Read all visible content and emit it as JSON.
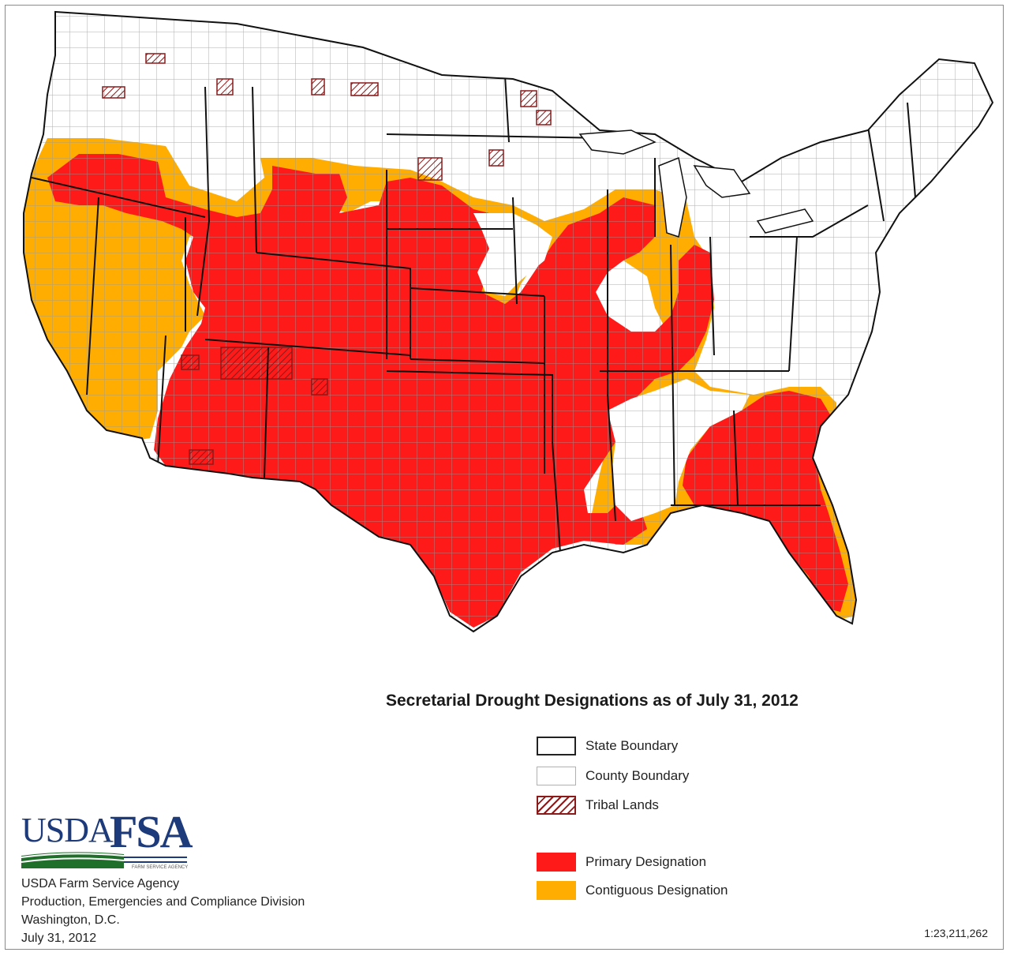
{
  "title": "Secretarial Drought Designations as of July 31, 2012",
  "legend": {
    "state_boundary": "State Boundary",
    "county_boundary": "County Boundary",
    "tribal_lands": "Tribal  Lands",
    "primary": "Primary Designation",
    "contiguous": "Contiguous Designation"
  },
  "colors": {
    "primary": "#ff1a1a",
    "contiguous": "#ffad00",
    "tribal": "#8b1a1a",
    "county_line": "#7a7a7a",
    "usda_blue": "#1d3a7a",
    "usda_green": "#1f6f2a"
  },
  "logo": {
    "usda": "USDA",
    "fsa": "FSA",
    "tagline": "FARM SERVICE AGENCY"
  },
  "agency": {
    "line1": "USDA Farm Service Agency",
    "line2": "Production, Emergencies and Compliance Division",
    "line3": "Washington, D.C.",
    "line4": "July 31, 2012"
  },
  "scale": "1:23,211,262"
}
